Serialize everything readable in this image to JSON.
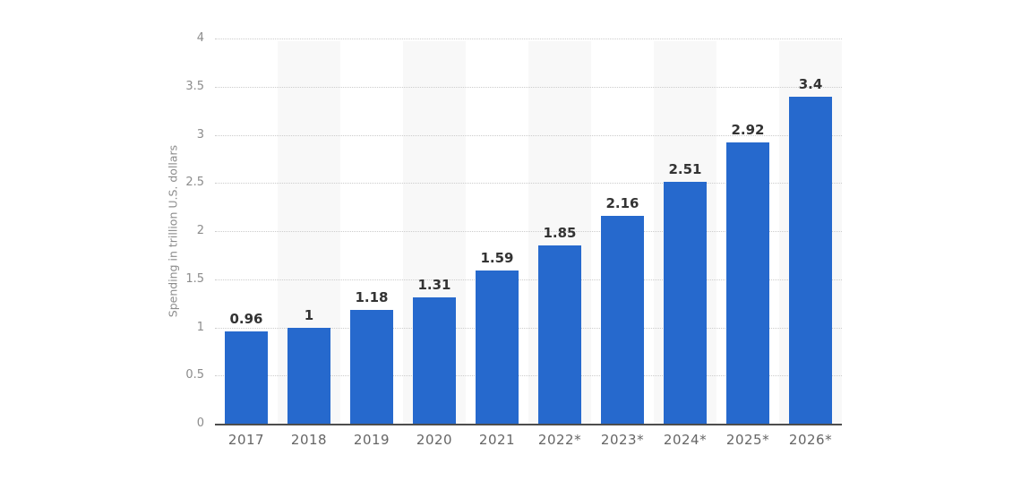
{
  "chart_data": {
    "type": "bar",
    "title": "",
    "xlabel": "",
    "ylabel": "Spending in trillion U.S. dollars",
    "categories": [
      "2017",
      "2018",
      "2019",
      "2020",
      "2021",
      "2022*",
      "2023*",
      "2024*",
      "2025*",
      "2026*"
    ],
    "values": [
      0.96,
      1,
      1.18,
      1.31,
      1.59,
      1.85,
      2.16,
      2.51,
      2.92,
      3.4
    ],
    "value_labels": [
      "0.96",
      "1",
      "1.18",
      "1.31",
      "1.59",
      "1.85",
      "2.16",
      "2.51",
      "2.92",
      "3.4"
    ],
    "yticks": [
      0,
      0.5,
      1,
      1.5,
      2,
      2.5,
      3,
      3.5,
      4
    ],
    "ytick_labels": [
      "0",
      "0.5",
      "1",
      "1.5",
      "2",
      "2.5",
      "3",
      "3.5",
      "4"
    ],
    "ylim": [
      0,
      4
    ],
    "grid": "horizontal-dotted",
    "legend": "none",
    "shaded_columns": [
      1,
      3,
      5,
      7,
      9
    ],
    "colors": {
      "bar": "#2669cd",
      "column_band": "#f8f8f8",
      "gridline": "#cccccc",
      "axis_line": "#4d4d4d",
      "value_label": "#333333",
      "tick_label": "#8c8c8c",
      "category_label": "#666666",
      "background": "#ffffff"
    }
  }
}
